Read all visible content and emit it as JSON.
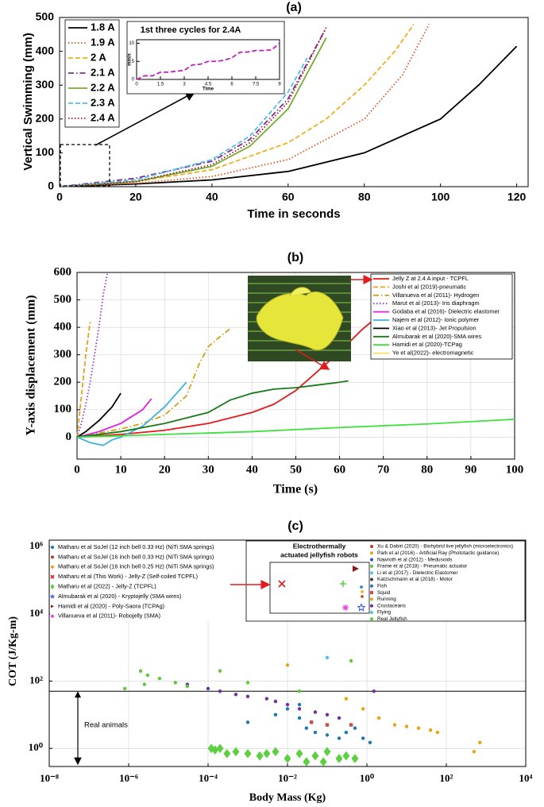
{
  "chart_data": [
    {
      "type": "line",
      "title": "(a)",
      "xlabel": "Time in seconds",
      "ylabel": "Vertical Swimming (mm)",
      "xlim": [
        0,
        123
      ],
      "xticks": [
        0,
        20,
        40,
        60,
        80,
        100,
        120
      ],
      "ylim": [
        0,
        500
      ],
      "yticks": [
        0,
        100,
        200,
        300,
        400,
        500
      ],
      "grid": false,
      "series": [
        {
          "name": "1.8 A",
          "color": "#000000",
          "dash": "solid",
          "x": [
            0,
            20,
            40,
            60,
            80,
            100,
            110,
            120
          ],
          "values": [
            0,
            8,
            20,
            45,
            100,
            200,
            300,
            415
          ]
        },
        {
          "name": "1.9 A",
          "color": "#d9541e",
          "dash": "dotted",
          "x": [
            0,
            20,
            40,
            60,
            80,
            90,
            97
          ],
          "values": [
            0,
            10,
            30,
            80,
            200,
            330,
            480
          ]
        },
        {
          "name": "2 A",
          "color": "#edb120",
          "dash": "dashed",
          "x": [
            0,
            20,
            40,
            60,
            70,
            80,
            88,
            93
          ],
          "values": [
            0,
            15,
            50,
            130,
            200,
            300,
            400,
            480
          ]
        },
        {
          "name": "2.1 A",
          "color": "#7e2f8e",
          "dash": "dashdot",
          "x": [
            0,
            20,
            40,
            50,
            60,
            70
          ],
          "values": [
            0,
            25,
            75,
            140,
            260,
            470
          ]
        },
        {
          "name": "2.2 A",
          "color": "#77ac30",
          "dash": "solid",
          "x": [
            0,
            20,
            40,
            50,
            60,
            70
          ],
          "values": [
            0,
            15,
            60,
            120,
            230,
            440
          ]
        },
        {
          "name": "2.3 A",
          "color": "#4dbeee",
          "dash": "dashed",
          "x": [
            0,
            20,
            40,
            50,
            60,
            65
          ],
          "values": [
            0,
            20,
            80,
            150,
            280,
            380
          ]
        },
        {
          "name": "2.4 A",
          "color": "#a2142f",
          "dash": "dotted",
          "x": [
            0,
            20,
            40,
            50,
            60,
            65,
            70
          ],
          "values": [
            0,
            15,
            65,
            130,
            250,
            360,
            470
          ]
        }
      ]
    },
    {
      "type": "line",
      "title": "1st three cycles for 2.4A",
      "xlabel": "Time",
      "ylabel": "mm/s",
      "xlim": [
        0,
        9
      ],
      "xticks": [
        0,
        1.5,
        3,
        4.5,
        6,
        7.5,
        9
      ],
      "ylim": [
        0,
        11
      ],
      "yticks": [
        0,
        5,
        10
      ],
      "grid": false,
      "series": [
        {
          "color": "#c020c0",
          "dash": "dashed",
          "x": [
            0,
            0.5,
            1,
            1.5,
            2,
            2.5,
            3,
            3.5,
            4,
            4.5,
            5,
            5.5,
            6,
            6.5,
            7,
            7.5,
            8,
            8.5,
            9
          ],
          "values": [
            0,
            1,
            1,
            2,
            2,
            2.3,
            2.5,
            4,
            4.2,
            5,
            5,
            5.3,
            6,
            7.5,
            7.6,
            8,
            8,
            8.2,
            10
          ]
        }
      ]
    },
    {
      "type": "line",
      "title": "(b)",
      "xlabel": "Time (s)",
      "ylabel": "Y-axis displacement (mm)",
      "xlim": [
        0,
        100
      ],
      "xticks": [
        0,
        10,
        20,
        30,
        40,
        50,
        60,
        70,
        80,
        90,
        100
      ],
      "ylim": [
        -80,
        600
      ],
      "yticks": [
        0,
        100,
        200,
        300,
        400,
        500,
        600
      ],
      "grid": true,
      "series": [
        {
          "name": "Jelly Z at 2.4 A input - TCPFL",
          "color": "#e41a1c",
          "dash": "solid",
          "x": [
            0,
            10,
            20,
            30,
            40,
            45,
            50,
            55,
            60,
            65,
            68
          ],
          "values": [
            0,
            10,
            25,
            50,
            90,
            120,
            170,
            240,
            310,
            390,
            430
          ]
        },
        {
          "name": "Joshi et al (2019)-pneumatic",
          "color": "#e8a317",
          "dash": "dashed",
          "x": [
            0,
            1,
            2,
            3
          ],
          "values": [
            0,
            150,
            300,
            420
          ]
        },
        {
          "name": "Villanueva et al (2011)- Hydrogen",
          "color": "#d4a017",
          "dash": "dashdot",
          "x": [
            0,
            5,
            10,
            15,
            20,
            25,
            28,
            30,
            33,
            35
          ],
          "values": [
            0,
            15,
            30,
            50,
            80,
            150,
            270,
            330,
            370,
            395
          ]
        },
        {
          "name": "Marut et al (2013)- Iris diaphragm",
          "color": "#9b30d0",
          "dash": "dotted",
          "x": [
            0,
            1,
            2,
            3,
            4,
            5,
            6,
            7
          ],
          "values": [
            0,
            50,
            120,
            200,
            300,
            400,
            520,
            600
          ]
        },
        {
          "name": "Godaba et al (2016)- Dielectric elastomer",
          "color": "#e020e0",
          "dash": "solid",
          "x": [
            0,
            5,
            10,
            15,
            17
          ],
          "values": [
            0,
            20,
            50,
            100,
            140
          ]
        },
        {
          "name": "Najem et al (2012)- Ionic polymer",
          "color": "#40b0e0",
          "dash": "solid",
          "x": [
            0,
            3,
            6,
            8,
            10,
            15,
            20,
            25
          ],
          "values": [
            0,
            -20,
            -30,
            -10,
            0,
            40,
            110,
            200
          ]
        },
        {
          "name": "Xiao et al (2013)- Jet Propulsion",
          "color": "#000000",
          "dash": "solid",
          "x": [
            0,
            2,
            5,
            8,
            10
          ],
          "values": [
            0,
            20,
            60,
            110,
            160
          ]
        },
        {
          "name": "Almubarak et al (2020)-SMA wires",
          "color": "#1a7a1a",
          "dash": "solid",
          "x": [
            0,
            10,
            20,
            30,
            35,
            40,
            45,
            50,
            55,
            60,
            62
          ],
          "values": [
            0,
            20,
            50,
            90,
            135,
            160,
            175,
            180,
            190,
            200,
            205
          ]
        },
        {
          "name": "Hamidi et al (2020)-TCPag",
          "color": "#3ee03e",
          "dash": "solid",
          "x": [
            0,
            20,
            40,
            60,
            80,
            100
          ],
          "values": [
            0,
            10,
            20,
            35,
            48,
            65
          ]
        },
        {
          "name": "Ye et al(2022)- electromagnetic",
          "color": "#f0e060",
          "dash": "solid",
          "x": [],
          "values": []
        }
      ]
    },
    {
      "type": "scatter",
      "title": "(c)",
      "xlabel": "Body Mass (Kg)",
      "ylabel": "COT (J/Kg-m)",
      "xlog": true,
      "ylog": true,
      "xlim": [
        1e-08,
        10000
      ],
      "ylim": [
        0.29,
        1550000
      ],
      "grid": true,
      "hline": 50,
      "xticks": [
        {
          "value": 1e-08,
          "label": "10⁻⁸"
        },
        {
          "value": 1e-06,
          "label": "10⁻⁶"
        },
        {
          "value": 0.0001,
          "label": "10⁻⁴"
        },
        {
          "value": 0.01,
          "label": "10⁻²"
        },
        {
          "value": 1,
          "label": "10⁰"
        },
        {
          "value": 100,
          "label": "10²"
        },
        {
          "value": 10000,
          "label": "10⁴"
        }
      ],
      "yticks": [
        {
          "value": 1,
          "label": "10⁰"
        },
        {
          "value": 100,
          "label": "10²"
        },
        {
          "value": 10000,
          "label": "10⁴"
        },
        {
          "value": 1000000,
          "label": "10⁶"
        }
      ],
      "annotations": [
        "Electrothermally",
        "actuated jellyfish robots",
        "Real animals"
      ],
      "robot_series": [
        {
          "name": "Matharu et al SoJel (12 inch bell 0.33 Hz) (NiTi SMA springs)",
          "color": "#1f77b4",
          "marker": "circle",
          "x": [],
          "values": []
        },
        {
          "name": "Matharu et al SoJel (16 inch bell 0.33 Hz) (NiTi SMA springs)",
          "color": "#c0392b",
          "marker": "circle",
          "x": [],
          "values": []
        },
        {
          "name": "Matharu et al SoJel (16 inch bell 0.25 Hz) (NiTi SMA springs)",
          "color": "#e8a317",
          "marker": "circle",
          "x": [],
          "values": []
        },
        {
          "name": "Matharu et al (This Work) - Jelly-Z (Self-coiled TCPFL)",
          "color": "#e41a1c",
          "marker": "x",
          "x": [],
          "values": []
        },
        {
          "name": "Matharu et al (2022) - Jelly-Z (TCPFL)",
          "color": "#5cd040",
          "marker": "diamond",
          "x": [
            0.00012,
            0.00015,
            0.0002,
            0.0003,
            0.0005,
            0.001,
            0.002,
            0.003,
            0.005,
            0.01,
            0.02,
            0.03,
            0.05,
            0.08,
            0.1,
            0.2,
            0.3,
            0.5
          ],
          "values": [
            1,
            0.9,
            1,
            0.7,
            0.8,
            0.7,
            0.6,
            0.7,
            0.8,
            0.5,
            0.7,
            0.4,
            0.6,
            0.4,
            0.8,
            0.5,
            0.6,
            0.5
          ]
        },
        {
          "name": "Almubarak et al (2020) - Kryptojelly (SMA wires)",
          "color": "#3050e0",
          "marker": "star",
          "x": [],
          "values": []
        },
        {
          "name": "Hamidi et al (2020) - Poly-Saora (TCPAg)",
          "color": "#8b1a1a",
          "marker": "triangle",
          "x": [],
          "values": []
        },
        {
          "name": "Villanueva et al (2011)- Robojelly (SMA)",
          "color": "#e040e0",
          "marker": "asterisk",
          "x": [],
          "values": []
        }
      ],
      "animal_series": [
        {
          "name": "Xu & Dabiri (2020) - Biohybrid live jellyfish (microelectronics)",
          "color": "#c0392b",
          "marker": "circle",
          "x": [],
          "values": []
        },
        {
          "name": "Park et al (2016) - Artificial Ray (Phototactic guidance)",
          "color": "#e8a317",
          "marker": "circle",
          "x": [],
          "values": []
        },
        {
          "name": "Nawroth et al (2012) - Medusoids",
          "color": "#3050c0",
          "marker": "circle",
          "x": [],
          "values": []
        },
        {
          "name": "Frame et al (2018) - Pneumatic actuator",
          "color": "#5cc93a",
          "marker": "circle",
          "x": [],
          "values": []
        },
        {
          "name": "Li et al (2017) - Dielectric Elastomer",
          "color": "#4fc3e8",
          "marker": "circle",
          "x": [],
          "values": []
        },
        {
          "name": "Katzschmann et al (2018) - Motor",
          "color": "#404040",
          "marker": "circle",
          "x": [],
          "values": []
        },
        {
          "name": "Fish",
          "color": "#1f77b4",
          "marker": "circle",
          "x": [
            0.001,
            0.005,
            0.01,
            0.02,
            0.03,
            0.05,
            0.1,
            0.2,
            0.3,
            0.5,
            0.8,
            1.2,
            0.02,
            0.04
          ],
          "values": [
            6,
            10,
            15,
            8,
            4,
            3,
            2.5,
            2,
            3,
            4,
            2,
            1.5,
            20,
            6
          ]
        },
        {
          "name": "Squid",
          "color": "#c0504d",
          "marker": "square",
          "x": [
            0.04,
            0.1,
            0.4
          ],
          "values": [
            6,
            5,
            5
          ]
        },
        {
          "name": "Running",
          "color": "#e8a317",
          "marker": "circle",
          "x": [
            0.01,
            0.3,
            0.8,
            2,
            5,
            10,
            20,
            40,
            60,
            500,
            700
          ],
          "values": [
            300,
            30,
            15,
            8,
            5,
            4.5,
            4,
            3.5,
            3,
            0.8,
            1.5
          ]
        },
        {
          "name": "Crustaceans",
          "color": "#7030a0",
          "marker": "circle",
          "x": [
            3e-05,
            0.0001,
            0.0002,
            0.0005,
            0.001,
            0.003,
            0.005,
            0.01,
            0.02,
            0.05,
            0.1,
            0.2,
            1.5
          ],
          "values": [
            80,
            60,
            50,
            40,
            35,
            30,
            25,
            20,
            15,
            12,
            10,
            8,
            50
          ]
        },
        {
          "name": "Flying",
          "color": "#4fc0e8",
          "marker": "circle",
          "x": [
            0.1
          ],
          "values": [
            500
          ]
        },
        {
          "name": "Real Jellyfish",
          "color": "#5cc93a",
          "marker": "circle",
          "x": [
            8e-07,
            2e-06,
            2.5e-06,
            3e-06,
            6e-06,
            1.5e-05,
            3e-05,
            0.0002,
            0.001,
            0.02,
            0.4
          ],
          "values": [
            60,
            200,
            80,
            150,
            120,
            90,
            70,
            200,
            90,
            50,
            400
          ]
        }
      ]
    }
  ]
}
